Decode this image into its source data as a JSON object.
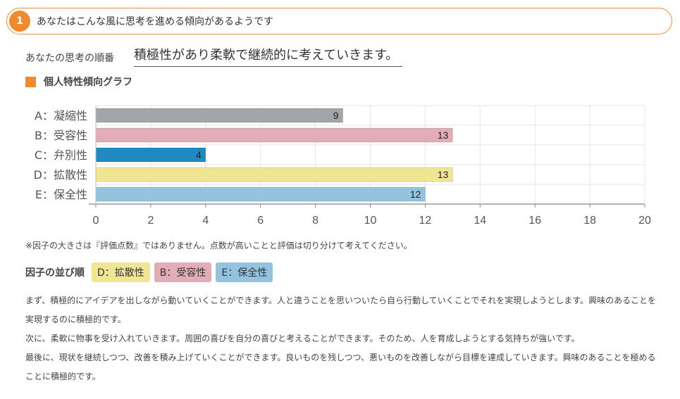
{
  "section": {
    "number": "1",
    "title": "あなたはこんな風に思考を進める傾向があるようです"
  },
  "order": {
    "label": "あなたの思考の順番",
    "value": "積極性があり柔軟で継続的に考えていきます。"
  },
  "graph_title": "個人特性傾向グラフ",
  "chart_data": {
    "type": "bar",
    "orientation": "horizontal",
    "categories": [
      "A：凝縮性",
      "B：受容性",
      "C：弁別性",
      "D：拡散性",
      "E：保全性"
    ],
    "values": [
      9,
      13,
      4,
      13,
      12
    ],
    "colors": [
      "#a2a6a9",
      "#e3adb8",
      "#1f8ac0",
      "#efe593",
      "#93c3de"
    ],
    "xlim": [
      0,
      20
    ],
    "xticks": [
      0,
      2,
      4,
      6,
      8,
      10,
      12,
      14,
      16,
      18,
      20
    ],
    "grid": true
  },
  "note": "※因子の大きさは『評価点数』ではありません。点数が高いことと評価は切り分けて考えてください。",
  "factor_order": {
    "label": "因子の並び順",
    "chips": [
      {
        "label": "D：拡散性",
        "color": "#efe593"
      },
      {
        "label": "B：受容性",
        "color": "#e3adb8"
      },
      {
        "label": "E：保全性",
        "color": "#93c3de"
      }
    ]
  },
  "paragraphs": [
    "まず、積極的にアイデアを出しながら動いていくことができます。人と違うことを思いついたら自ら行動していくことでそれを実現しようとします。興味のあることを実現するのに積極的です。",
    "次に、柔軟に物事を受け入れていきます。周囲の喜びを自分の喜びと考えることができます。そのため、人を育成しようとする気持ちが強いです。",
    "最後に、現状を継続しつつ、改善を積み上げていくことができます。良いものを残しつつ、悪いものを改善しながら目標を達成していきます。興味のあることを極めることに積極的です。"
  ]
}
